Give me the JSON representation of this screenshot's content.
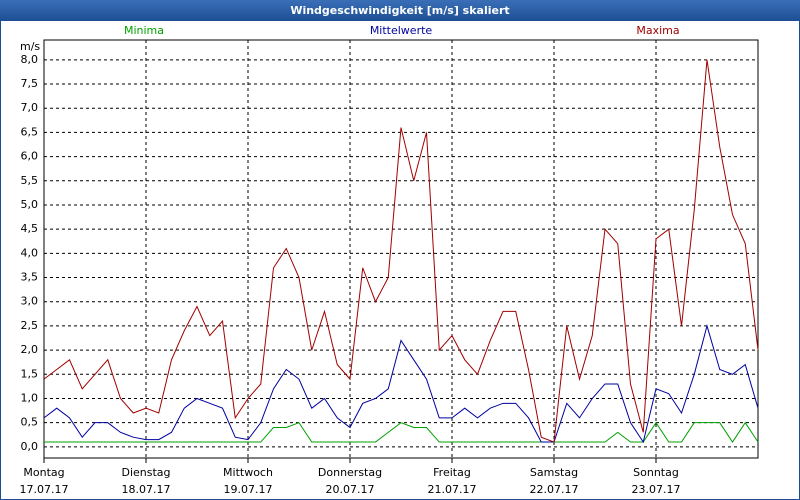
{
  "chart_data": {
    "type": "line",
    "title": "Windgeschwindigkeit [m/s] skaliert",
    "y_unit": "m/s",
    "x": [
      0,
      3,
      6,
      9,
      12,
      15,
      18,
      21,
      24,
      27,
      30,
      33,
      36,
      39,
      42,
      45,
      48,
      51,
      54,
      57,
      60,
      63,
      66,
      69,
      72,
      75,
      78,
      81,
      84,
      87,
      90,
      93,
      96,
      99,
      102,
      105,
      108,
      111,
      114,
      117,
      120,
      123,
      126,
      129,
      132,
      135,
      138,
      141,
      144,
      147,
      150,
      153,
      156,
      159,
      162,
      165,
      168
    ],
    "series": [
      {
        "name": "Minima",
        "color": "#00a000",
        "values": [
          0.1,
          0.1,
          0.1,
          0.1,
          0.1,
          0.1,
          0.1,
          0.1,
          0.1,
          0.1,
          0.1,
          0.1,
          0.1,
          0.1,
          0.1,
          0.1,
          0.1,
          0.1,
          0.4,
          0.4,
          0.5,
          0.1,
          0.1,
          0.1,
          0.1,
          0.1,
          0.1,
          0.3,
          0.5,
          0.4,
          0.4,
          0.1,
          0.1,
          0.1,
          0.1,
          0.1,
          0.1,
          0.1,
          0.1,
          0.1,
          0.1,
          0.1,
          0.1,
          0.1,
          0.1,
          0.3,
          0.1,
          0.1,
          0.5,
          0.1,
          0.1,
          0.5,
          0.5,
          0.5,
          0.1,
          0.5,
          0.1
        ]
      },
      {
        "name": "Mittelwerte",
        "color": "#0000a0",
        "values": [
          0.6,
          0.8,
          0.6,
          0.2,
          0.5,
          0.5,
          0.3,
          0.2,
          0.15,
          0.15,
          0.3,
          0.8,
          1.0,
          0.9,
          0.8,
          0.2,
          0.15,
          0.5,
          1.2,
          1.6,
          1.4,
          0.8,
          1.0,
          0.6,
          0.4,
          0.9,
          1.0,
          1.2,
          2.2,
          1.8,
          1.4,
          0.6,
          0.6,
          0.8,
          0.6,
          0.8,
          0.9,
          0.9,
          0.6,
          0.1,
          0.1,
          0.9,
          0.6,
          1.0,
          1.3,
          1.3,
          0.5,
          0.1,
          1.2,
          1.1,
          0.7,
          1.5,
          2.5,
          1.6,
          1.5,
          1.7,
          0.8
        ]
      },
      {
        "name": "Maxima",
        "color": "#a00000",
        "values": [
          1.4,
          1.6,
          1.8,
          1.2,
          1.5,
          1.8,
          1.0,
          0.7,
          0.8,
          0.7,
          1.8,
          2.4,
          2.9,
          2.3,
          2.6,
          0.6,
          1.0,
          1.3,
          3.7,
          4.1,
          3.5,
          2.0,
          2.8,
          1.7,
          1.4,
          3.7,
          3.0,
          3.5,
          6.6,
          5.5,
          6.5,
          2.0,
          2.3,
          1.8,
          1.5,
          2.2,
          2.8,
          2.8,
          1.6,
          0.2,
          0.1,
          2.5,
          1.4,
          2.3,
          4.5,
          4.2,
          1.3,
          0.3,
          4.3,
          4.5,
          2.5,
          4.9,
          8.0,
          6.2,
          4.8,
          4.2,
          2.0
        ]
      }
    ],
    "xlim": [
      0,
      168
    ],
    "xticks": [
      {
        "value": 0,
        "label": "Montag",
        "date": "17.07.17"
      },
      {
        "value": 24,
        "label": "Dienstag",
        "date": "18.07.17"
      },
      {
        "value": 48,
        "label": "Mittwoch",
        "date": "19.07.17"
      },
      {
        "value": 72,
        "label": "Donnerstag",
        "date": "20.07.17"
      },
      {
        "value": 96,
        "label": "Freitag",
        "date": "21.07.17"
      },
      {
        "value": 120,
        "label": "Samstag",
        "date": "22.07.17"
      },
      {
        "value": 144,
        "label": "Sonntag",
        "date": "23.07.17"
      }
    ],
    "ylim": [
      -0.23,
      8.41
    ],
    "yticks": [
      {
        "value": 0,
        "label": "0,0"
      },
      {
        "value": 0.5,
        "label": "0,5"
      },
      {
        "value": 1,
        "label": "1,0"
      },
      {
        "value": 1.5,
        "label": "1,5"
      },
      {
        "value": 2,
        "label": "2,0"
      },
      {
        "value": 2.5,
        "label": "2,5"
      },
      {
        "value": 3,
        "label": "3,0"
      },
      {
        "value": 3.5,
        "label": "3,5"
      },
      {
        "value": 4,
        "label": "4,0"
      },
      {
        "value": 4.5,
        "label": "4,5"
      },
      {
        "value": 5,
        "label": "5,0"
      },
      {
        "value": 5.5,
        "label": "5,5"
      },
      {
        "value": 6,
        "label": "6,0"
      },
      {
        "value": 6.5,
        "label": "6,5"
      },
      {
        "value": 7,
        "label": "7,0"
      },
      {
        "value": 7.5,
        "label": "7,5"
      },
      {
        "value": 8,
        "label": "8,0"
      }
    ],
    "grid": true
  }
}
